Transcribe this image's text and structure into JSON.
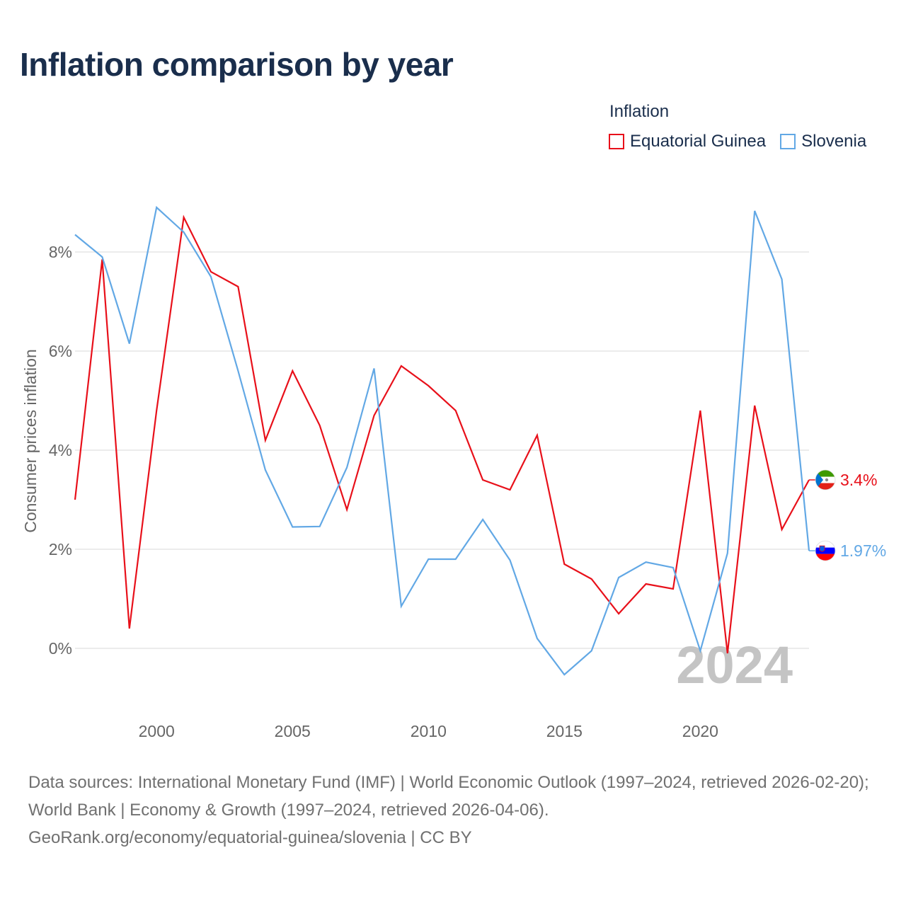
{
  "title": "Inflation comparison by year",
  "legend": {
    "title": "Inflation",
    "items": [
      {
        "name": "Equatorial Guinea",
        "color": "#e8101a"
      },
      {
        "name": "Slovenia",
        "color": "#62a8e5"
      }
    ]
  },
  "footer": {
    "sources": "Data sources: International Monetary Fund (IMF) | World Economic Outlook (1997–2024, retrieved 2026-02-20); World Bank | Economy & Growth (1997–2024, retrieved 2026-04-06).",
    "credit": "GeoRank.org/economy/equatorial-guinea/slovenia | CC BY"
  },
  "chart_data": {
    "type": "line",
    "ylabel": "Consumer prices inflation",
    "xlabel": "",
    "year_watermark": "2024",
    "x": [
      1997,
      1998,
      1999,
      2000,
      2001,
      2002,
      2003,
      2004,
      2005,
      2006,
      2007,
      2008,
      2009,
      2010,
      2011,
      2012,
      2013,
      2014,
      2015,
      2016,
      2017,
      2018,
      2019,
      2020,
      2021,
      2022,
      2023,
      2024
    ],
    "xlim": [
      1997,
      2024
    ],
    "ylim": [
      -1.3,
      9.2
    ],
    "x_ticks": [
      2000,
      2005,
      2010,
      2015,
      2020
    ],
    "y_ticks": [
      {
        "value": 0,
        "label": "0%"
      },
      {
        "value": 2,
        "label": "2%"
      },
      {
        "value": 4,
        "label": "4%"
      },
      {
        "value": 6,
        "label": "6%"
      },
      {
        "value": 8,
        "label": "8%"
      }
    ],
    "grid": true,
    "series": [
      {
        "name": "Equatorial Guinea",
        "color": "#e8101a",
        "end_label": "3.4%",
        "flag": "equatorial-guinea-flag-icon",
        "values": [
          3.0,
          7.85,
          0.4,
          4.8,
          8.7,
          7.6,
          7.3,
          4.2,
          5.6,
          4.5,
          2.8,
          4.7,
          5.7,
          5.3,
          4.8,
          3.4,
          3.2,
          4.3,
          1.7,
          1.4,
          0.7,
          1.3,
          1.2,
          4.8,
          -0.1,
          4.9,
          2.4,
          3.4
        ]
      },
      {
        "name": "Slovenia",
        "color": "#62a8e5",
        "end_label": "1.97%",
        "flag": "slovenia-flag-icon",
        "values": [
          8.35,
          7.9,
          6.15,
          8.9,
          8.4,
          7.5,
          5.6,
          3.6,
          2.45,
          2.46,
          3.65,
          5.65,
          0.85,
          1.8,
          1.8,
          2.6,
          1.78,
          0.2,
          -0.53,
          -0.05,
          1.43,
          1.74,
          1.63,
          -0.05,
          1.92,
          8.83,
          7.45,
          1.97
        ]
      }
    ]
  }
}
